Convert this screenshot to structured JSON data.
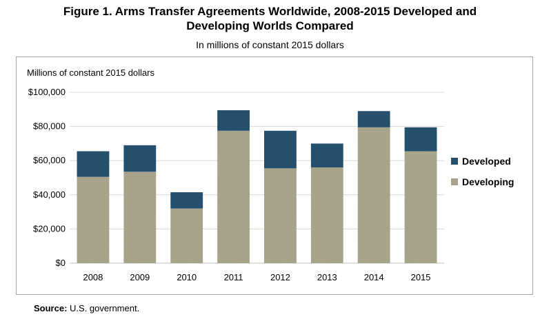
{
  "figure": {
    "title_line1": "Figure 1. Arms Transfer Agreements Worldwide, 2008-2015 Developed and",
    "title_line2": "Developing Worlds Compared",
    "subtitle": "In millions of constant 2015 dollars"
  },
  "source": {
    "label": "Source:",
    "text": "U.S. government."
  },
  "chart_data": {
    "type": "bar",
    "stacked": true,
    "ylabel": "Millions of constant 2015 dollars",
    "ylim": [
      0,
      100000
    ],
    "ytick_labels": [
      "$0",
      "$20,000",
      "$40,000",
      "$60,000",
      "$80,000",
      "$100,000"
    ],
    "categories": [
      "2008",
      "2009",
      "2010",
      "2011",
      "2012",
      "2013",
      "2014",
      "2015"
    ],
    "series": [
      {
        "name": "Developing",
        "color": "#a9a48c",
        "values": [
          50500,
          53500,
          32000,
          77500,
          55500,
          56000,
          79500,
          65500
        ]
      },
      {
        "name": "Developed",
        "color": "#24506e",
        "values": [
          15000,
          15500,
          9500,
          12000,
          22000,
          14000,
          9500,
          14000
        ]
      }
    ],
    "legend": {
      "position": "right",
      "order": [
        "Developed",
        "Developing"
      ]
    },
    "grid": true
  }
}
